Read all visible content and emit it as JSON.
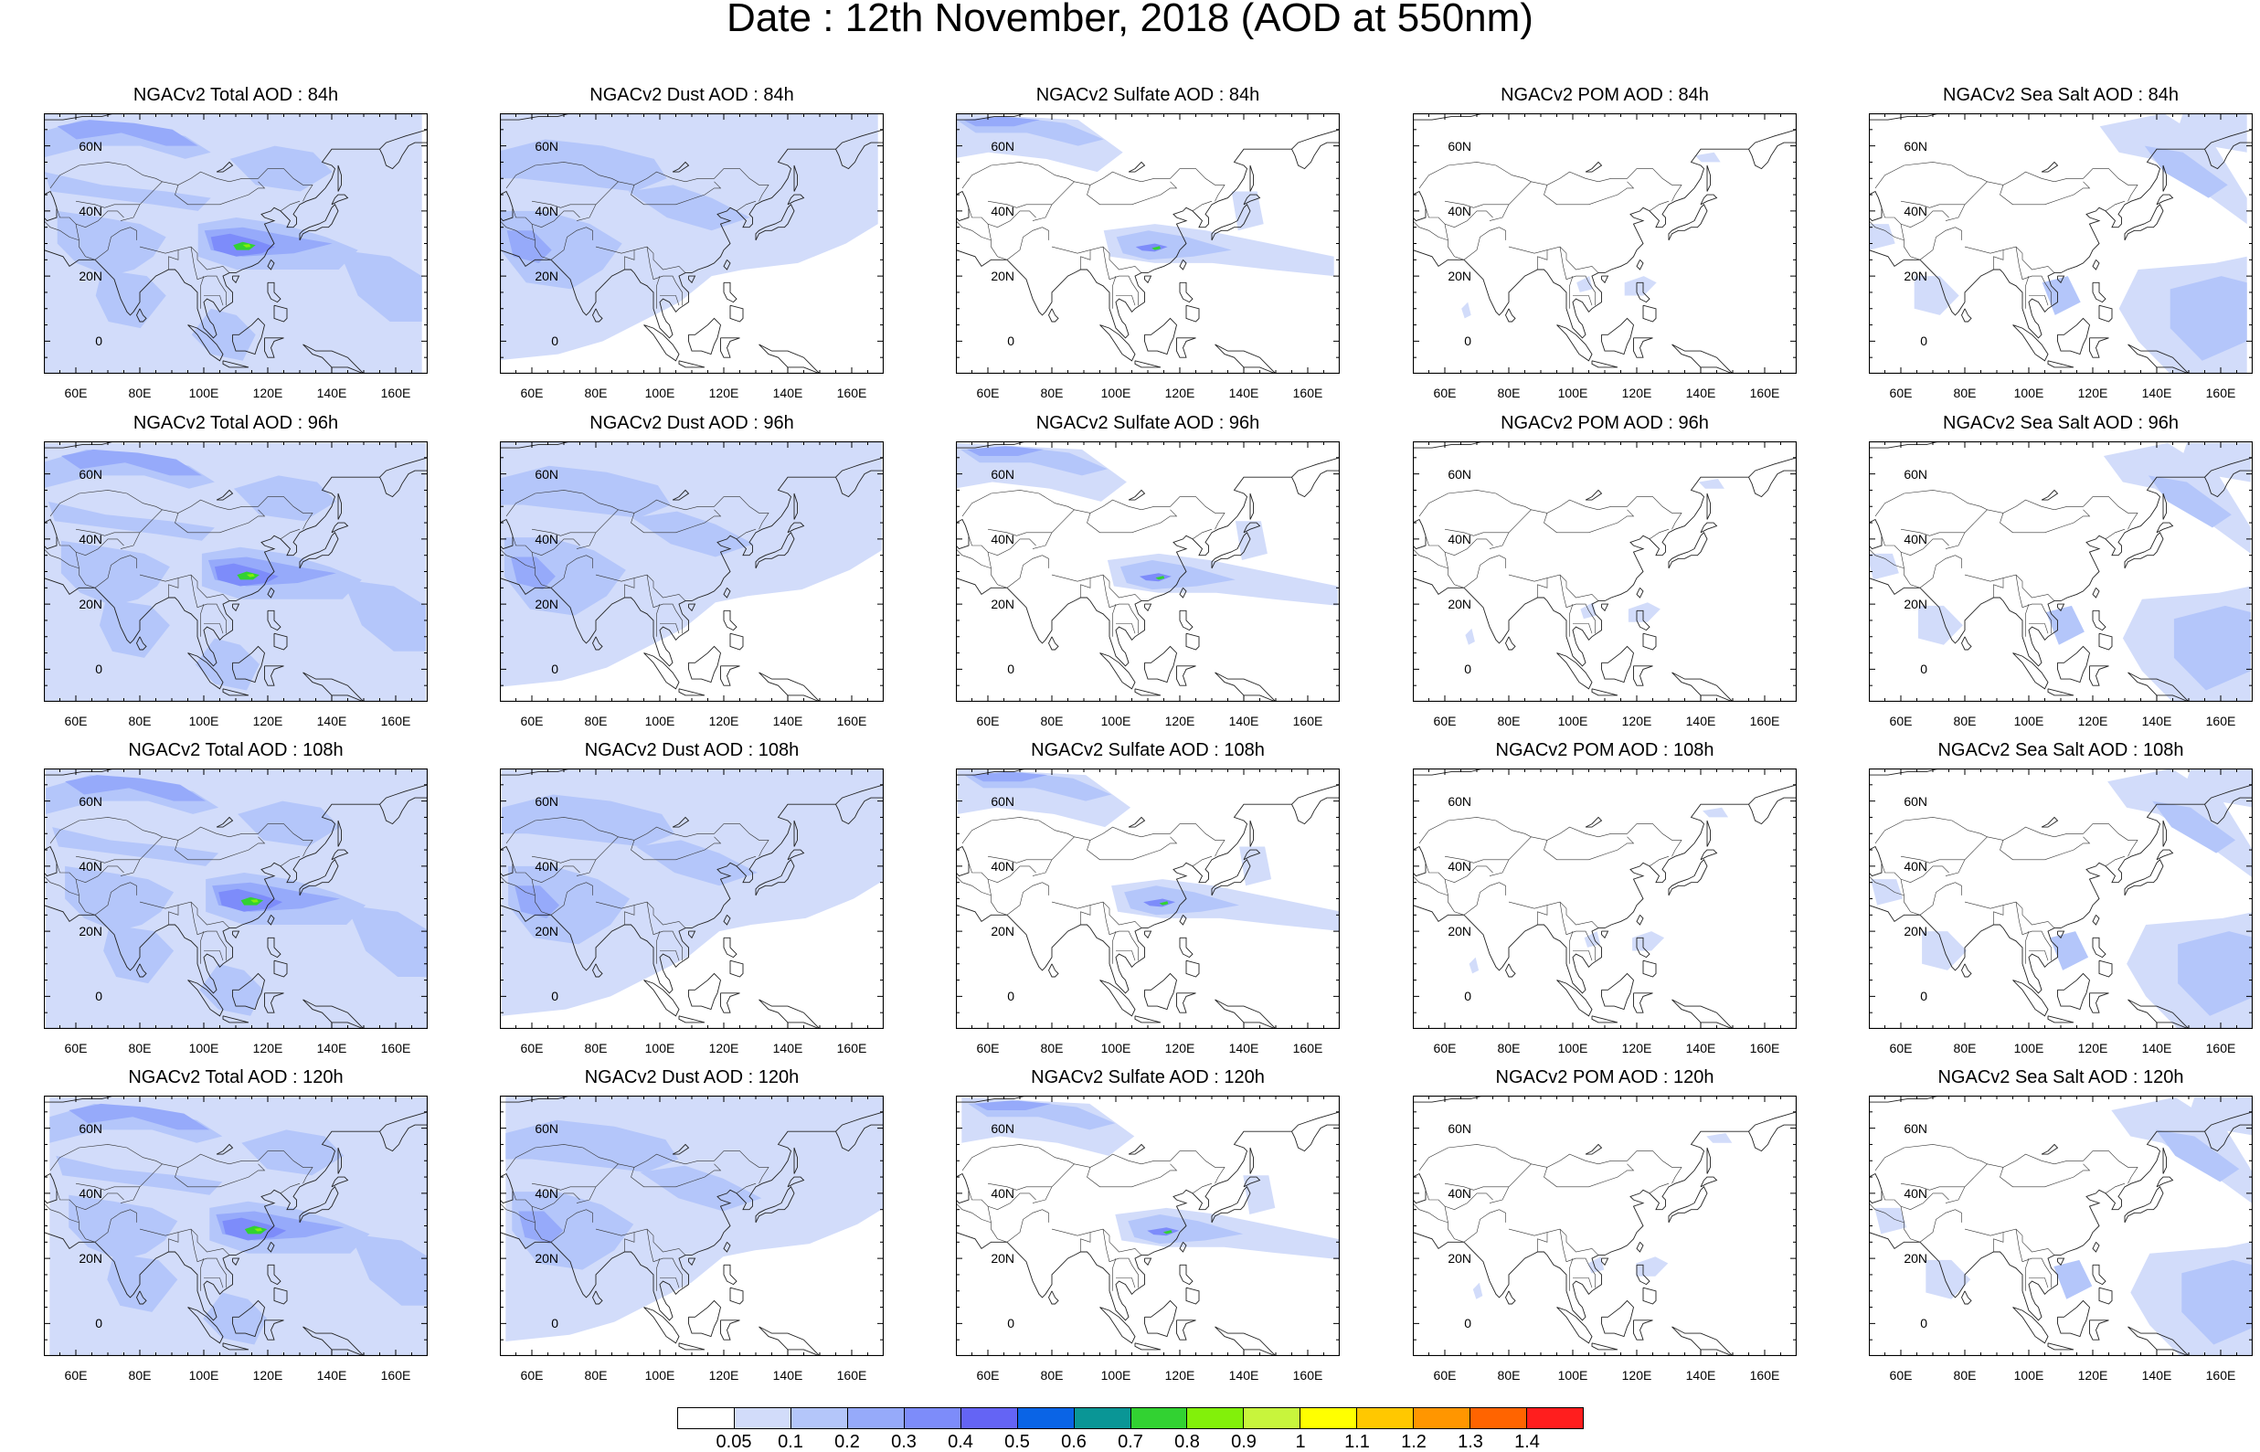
{
  "title": "Date : 12th November, 2018 (AOD at 550nm)",
  "panels": [
    [
      {
        "title": "NGACv2 Total AOD : 84h",
        "product": "total"
      },
      {
        "title": "NGACv2 Dust AOD : 84h",
        "product": "dust"
      },
      {
        "title": "NGACv2 Sulfate AOD : 84h",
        "product": "sulfate"
      },
      {
        "title": "NGACv2 POM AOD : 84h",
        "product": "pom"
      },
      {
        "title": "NGACv2 Sea Salt AOD : 84h",
        "product": "seasalt"
      }
    ],
    [
      {
        "title": "NGACv2 Total AOD : 96h",
        "product": "total"
      },
      {
        "title": "NGACv2 Dust AOD : 96h",
        "product": "dust"
      },
      {
        "title": "NGACv2 Sulfate AOD : 96h",
        "product": "sulfate"
      },
      {
        "title": "NGACv2 POM AOD : 96h",
        "product": "pom"
      },
      {
        "title": "NGACv2 Sea Salt AOD : 96h",
        "product": "seasalt"
      }
    ],
    [
      {
        "title": "NGACv2 Total AOD : 108h",
        "product": "total"
      },
      {
        "title": "NGACv2 Dust AOD : 108h",
        "product": "dust"
      },
      {
        "title": "NGACv2 Sulfate AOD : 108h",
        "product": "sulfate"
      },
      {
        "title": "NGACv2 POM AOD : 108h",
        "product": "pom"
      },
      {
        "title": "NGACv2 Sea Salt AOD : 108h",
        "product": "seasalt"
      }
    ],
    [
      {
        "title": "NGACv2 Total AOD : 120h",
        "product": "total"
      },
      {
        "title": "NGACv2 Dust AOD : 120h",
        "product": "dust"
      },
      {
        "title": "NGACv2 Sulfate AOD : 120h",
        "product": "sulfate"
      },
      {
        "title": "NGACv2 POM AOD : 120h",
        "product": "pom"
      },
      {
        "title": "NGACv2 Sea Salt  AOD : 120h",
        "product": "seasalt"
      }
    ]
  ],
  "y_ticks": [
    "60N",
    "40N",
    "20N",
    "0"
  ],
  "y_tick_values": [
    60,
    40,
    20,
    0
  ],
  "x_ticks": [
    "60E",
    "80E",
    "100E",
    "120E",
    "140E",
    "160E"
  ],
  "x_tick_values": [
    60,
    80,
    100,
    120,
    140,
    160
  ],
  "map_extent": {
    "lon": [
      50,
      170
    ],
    "lat": [
      -10,
      70
    ]
  },
  "colorbar": {
    "labels": [
      "0.05",
      "0.1",
      "0.2",
      "0.3",
      "0.4",
      "0.5",
      "0.6",
      "0.7",
      "0.8",
      "0.9",
      "1",
      "1.1",
      "1.2",
      "1.3",
      "1.4"
    ],
    "colors": [
      "#ffffff",
      "#d2dcfa",
      "#b4c6fa",
      "#96aafa",
      "#7d8cfa",
      "#6464f5",
      "#0a64e6",
      "#0a9696",
      "#32d232",
      "#82f00a",
      "#c8f53c",
      "#ffff00",
      "#ffc800",
      "#ff9600",
      "#ff6400",
      "#ff1e1e"
    ]
  }
}
